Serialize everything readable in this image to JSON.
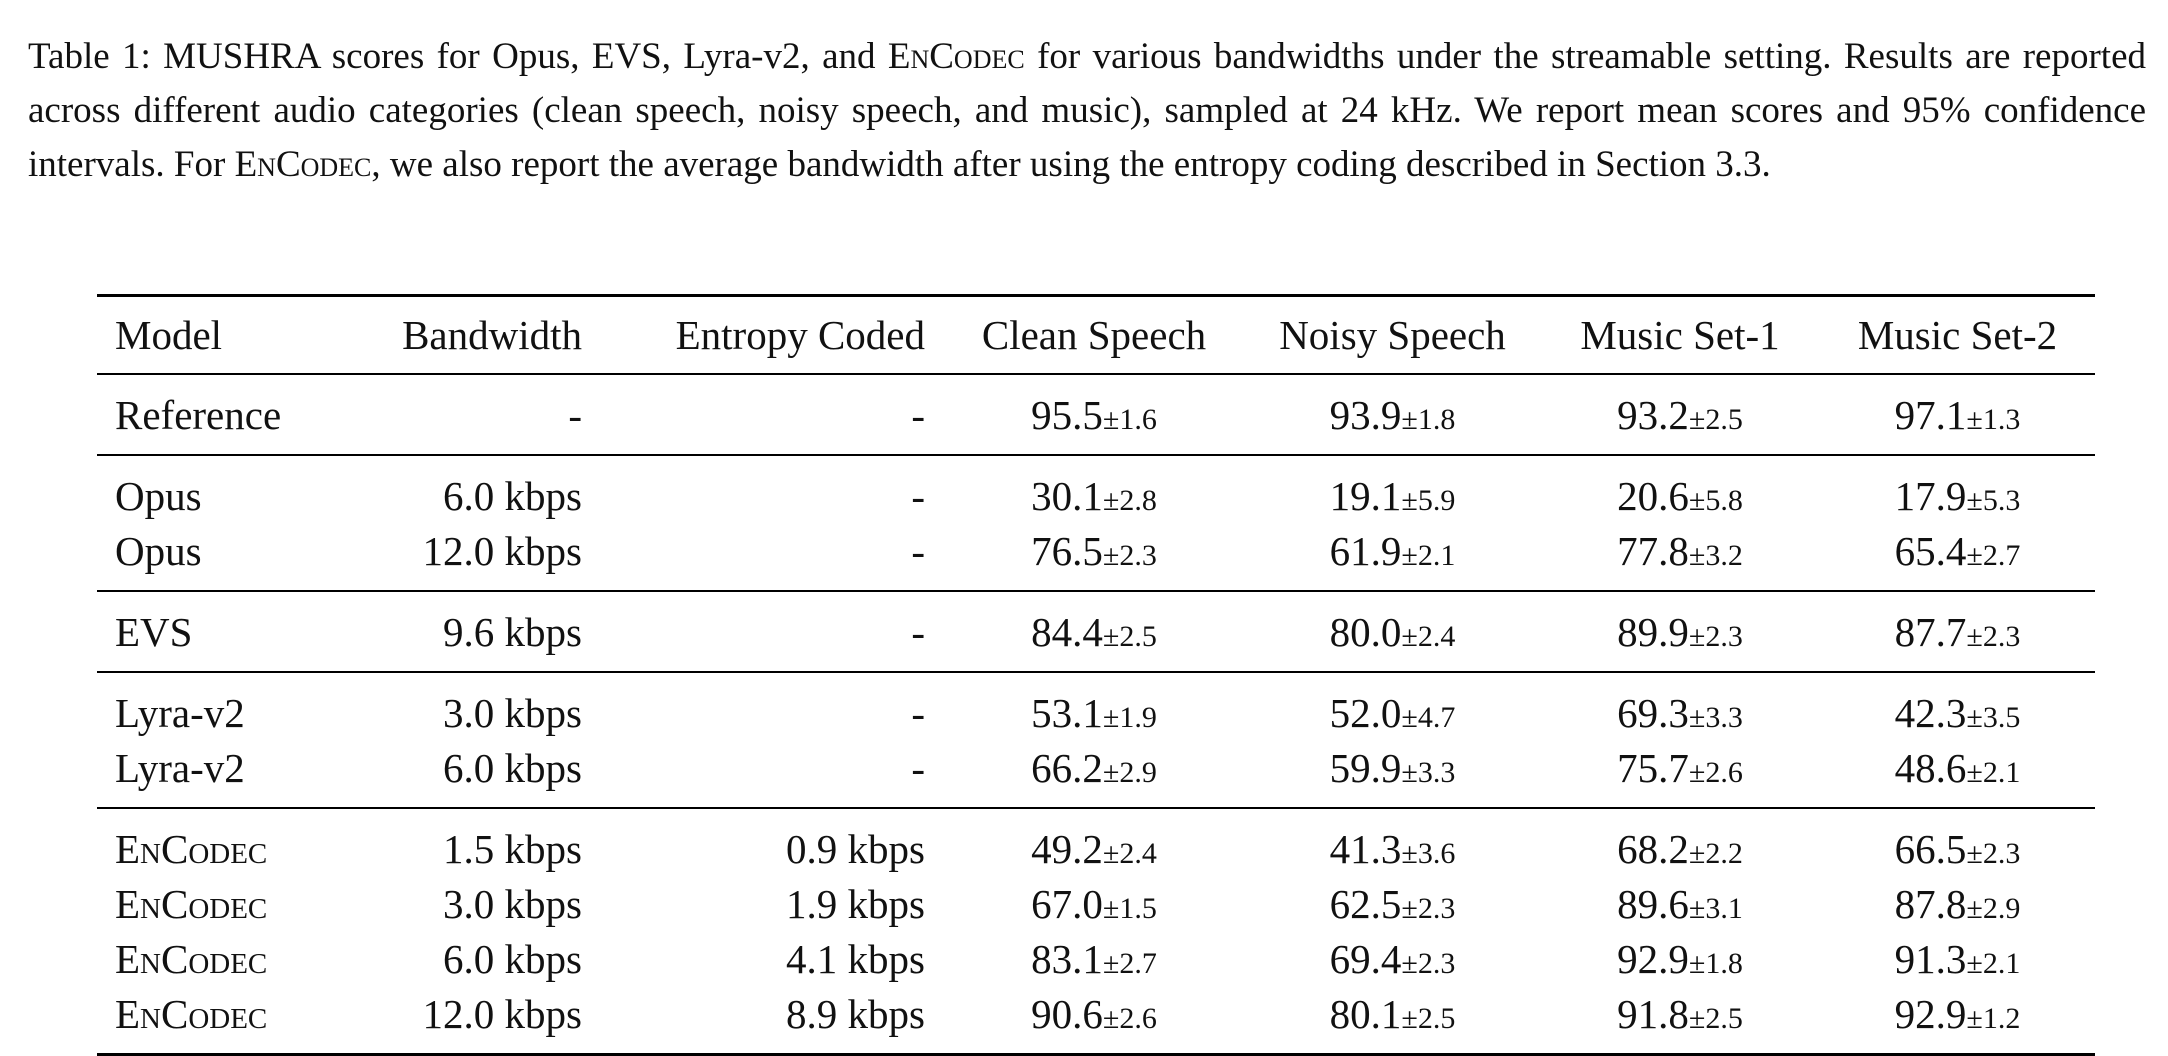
{
  "caption": [
    "Table 1: MUSHRA scores for Opus, EVS, Lyra-v2, and ",
    "EnCodec",
    " for various bandwidths under the streamable setting. Results are reported across different audio categories (clean speech, noisy speech, and music), sampled at 24 kHz. We report mean scores and 95% confidence intervals. For ",
    "EnCodec",
    ", we also report the average bandwidth after using the entropy coding described in Section 3.3."
  ],
  "table": {
    "header": [
      "Model",
      "Bandwidth",
      "Entropy Coded",
      "Clean Speech",
      "Noisy Speech",
      "Music Set-1",
      "Music Set-2"
    ],
    "groups": [
      [
        {
          "model": "Reference",
          "bandwidth": "-",
          "entropy": "-",
          "scores": [
            {
              "mean": "95.5",
              "ci": "±1.6"
            },
            {
              "mean": "93.9",
              "ci": "±1.8"
            },
            {
              "mean": "93.2",
              "ci": "±2.5"
            },
            {
              "mean": "97.1",
              "ci": "±1.3"
            }
          ]
        }
      ],
      [
        {
          "model": "Opus",
          "bandwidth": "6.0 kbps",
          "entropy": "-",
          "scores": [
            {
              "mean": "30.1",
              "ci": "±2.8"
            },
            {
              "mean": "19.1",
              "ci": "±5.9"
            },
            {
              "mean": "20.6",
              "ci": "±5.8"
            },
            {
              "mean": "17.9",
              "ci": "±5.3"
            }
          ]
        },
        {
          "model": "Opus",
          "bandwidth": "12.0 kbps",
          "entropy": "-",
          "scores": [
            {
              "mean": "76.5",
              "ci": "±2.3"
            },
            {
              "mean": "61.9",
              "ci": "±2.1"
            },
            {
              "mean": "77.8",
              "ci": "±3.2"
            },
            {
              "mean": "65.4",
              "ci": "±2.7"
            }
          ]
        }
      ],
      [
        {
          "model": "EVS",
          "bandwidth": "9.6 kbps",
          "entropy": "-",
          "scores": [
            {
              "mean": "84.4",
              "ci": "±2.5"
            },
            {
              "mean": "80.0",
              "ci": "±2.4"
            },
            {
              "mean": "89.9",
              "ci": "±2.3"
            },
            {
              "mean": "87.7",
              "ci": "±2.3"
            }
          ]
        }
      ],
      [
        {
          "model": "Lyra-v2",
          "bandwidth": "3.0 kbps",
          "entropy": "-",
          "scores": [
            {
              "mean": "53.1",
              "ci": "±1.9"
            },
            {
              "mean": "52.0",
              "ci": "±4.7"
            },
            {
              "mean": "69.3",
              "ci": "±3.3"
            },
            {
              "mean": "42.3",
              "ci": "±3.5"
            }
          ]
        },
        {
          "model": "Lyra-v2",
          "bandwidth": "6.0 kbps",
          "entropy": "-",
          "scores": [
            {
              "mean": "66.2",
              "ci": "±2.9"
            },
            {
              "mean": "59.9",
              "ci": "±3.3"
            },
            {
              "mean": "75.7",
              "ci": "±2.6"
            },
            {
              "mean": "48.6",
              "ci": "±2.1"
            }
          ]
        }
      ],
      [
        {
          "model": "EnCodec",
          "bandwidth": "1.5 kbps",
          "entropy": "0.9 kbps",
          "scores": [
            {
              "mean": "49.2",
              "ci": "±2.4"
            },
            {
              "mean": "41.3",
              "ci": "±3.6"
            },
            {
              "mean": "68.2",
              "ci": "±2.2"
            },
            {
              "mean": "66.5",
              "ci": "±2.3"
            }
          ]
        },
        {
          "model": "EnCodec",
          "bandwidth": "3.0 kbps",
          "entropy": "1.9 kbps",
          "scores": [
            {
              "mean": "67.0",
              "ci": "±1.5"
            },
            {
              "mean": "62.5",
              "ci": "±2.3"
            },
            {
              "mean": "89.6",
              "ci": "±3.1"
            },
            {
              "mean": "87.8",
              "ci": "±2.9"
            }
          ]
        },
        {
          "model": "EnCodec",
          "bandwidth": "6.0 kbps",
          "entropy": "4.1 kbps",
          "scores": [
            {
              "mean": "83.1",
              "ci": "±2.7"
            },
            {
              "mean": "69.4",
              "ci": "±2.3"
            },
            {
              "mean": "92.9",
              "ci": "±1.8"
            },
            {
              "mean": "91.3",
              "ci": "±2.1"
            }
          ]
        },
        {
          "model": "EnCodec",
          "bandwidth": "12.0 kbps",
          "entropy": "8.9 kbps",
          "scores": [
            {
              "mean": "90.6",
              "ci": "±2.6"
            },
            {
              "mean": "80.1",
              "ci": "±2.5"
            },
            {
              "mean": "91.8",
              "ci": "±2.5"
            },
            {
              "mean": "92.9",
              "ci": "±1.2"
            }
          ]
        }
      ]
    ]
  }
}
